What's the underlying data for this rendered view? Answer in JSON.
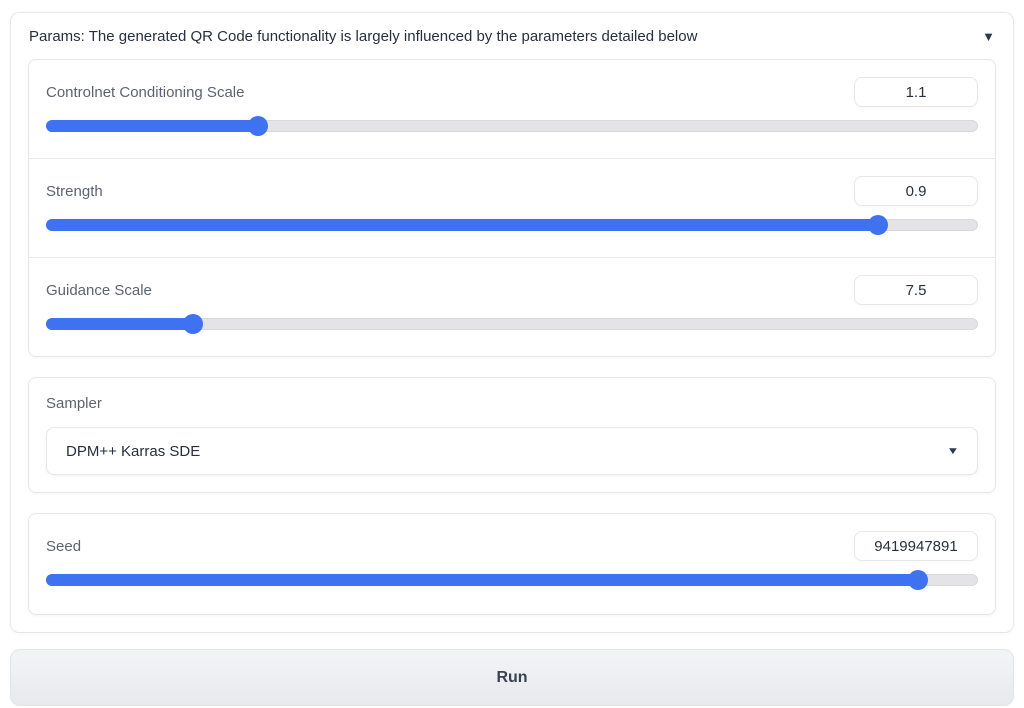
{
  "colors": {
    "accent": "#3e72f1",
    "track": "#e4e4e7",
    "border": "#e6e7ea",
    "label_text": "#5d6370",
    "dark_text": "#27303d"
  },
  "accordion": {
    "title": "Params: The generated QR Code functionality is largely influenced by the parameters detailed below",
    "collapse_icon": "▼"
  },
  "slider_group": {
    "sliders": [
      {
        "label": "Controlnet Conditioning Scale",
        "value": "1.1",
        "percent": 22.7
      },
      {
        "label": "Strength",
        "value": "0.9",
        "percent": 89.3
      },
      {
        "label": "Guidance Scale",
        "value": "7.5",
        "percent": 15.8
      }
    ]
  },
  "sampler": {
    "label": "Sampler",
    "selected": "DPM++ Karras SDE",
    "caret_icon": "▼"
  },
  "seed": {
    "label": "Seed",
    "value": "9419947891",
    "percent": 93.6
  },
  "run_button": {
    "label": "Run"
  }
}
